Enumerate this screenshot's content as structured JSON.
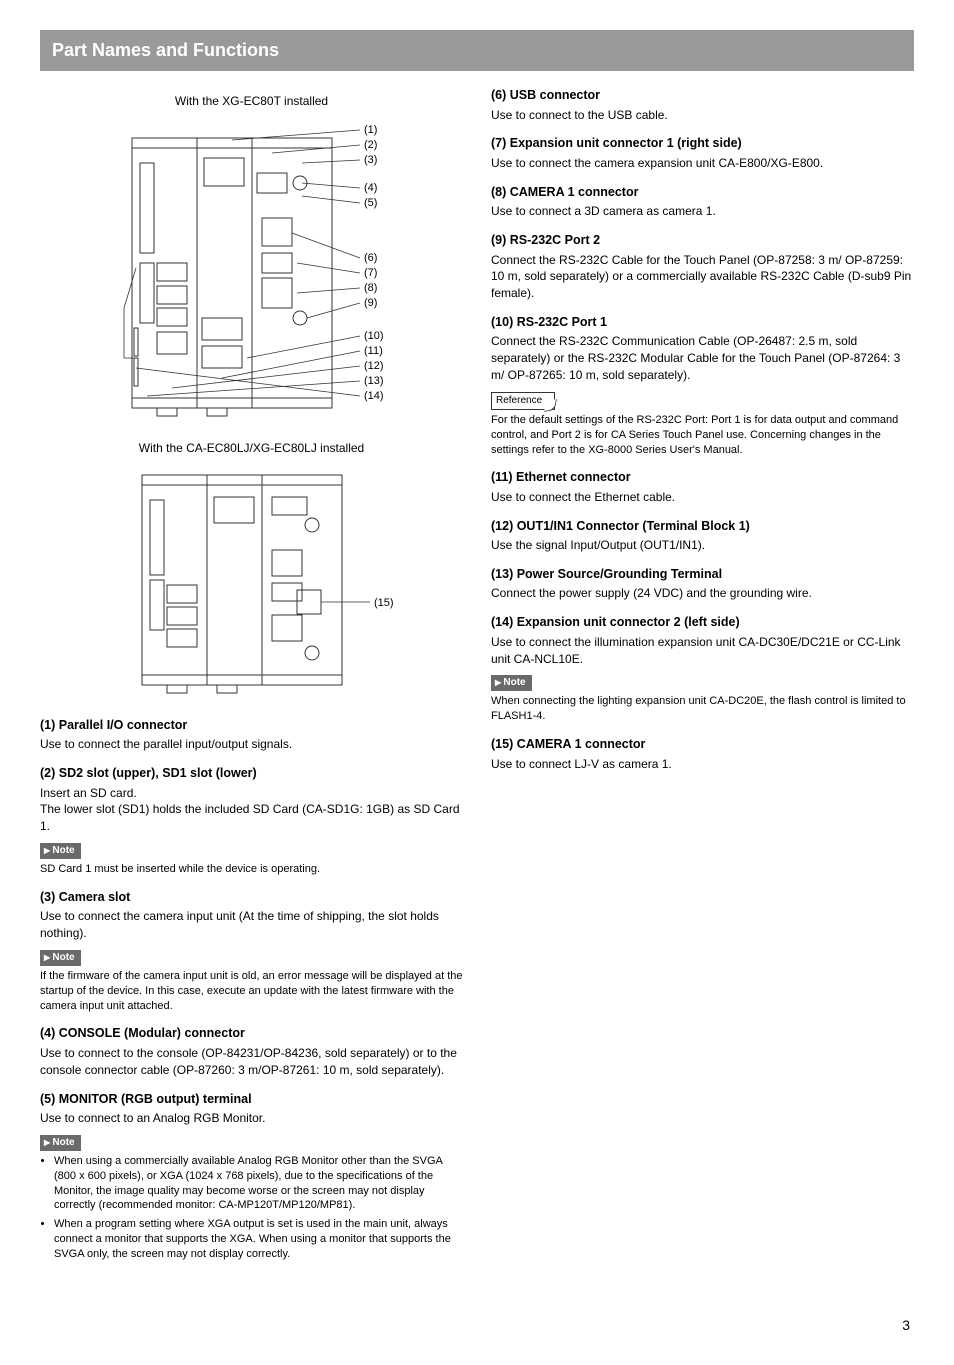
{
  "header": {
    "title": "Part Names and Functions"
  },
  "figures": {
    "fig1": {
      "caption": "With the XG-EC80T installed",
      "labels": [
        "(1)",
        "(2)",
        "(3)",
        "(4)",
        "(5)",
        "(6)",
        "(7)",
        "(8)",
        "(9)",
        "(10)",
        "(11)",
        "(12)",
        "(13)",
        "(14)"
      ]
    },
    "fig2": {
      "caption": "With the CA-EC80LJ/XG-EC80LJ installed",
      "labels": [
        "(15)"
      ]
    }
  },
  "badges": {
    "note": "Note",
    "reference": "Reference"
  },
  "left_items": {
    "i1": {
      "title": "(1) Parallel I/O connector",
      "body": "Use to connect the parallel input/output signals."
    },
    "i2": {
      "title": "(2) SD2 slot (upper), SD1 slot (lower)",
      "body": "Insert an SD card.\nThe lower slot (SD1) holds the included SD Card (CA-SD1G: 1GB) as SD Card 1.",
      "note": "SD Card 1 must be inserted while the device is operating."
    },
    "i3": {
      "title": "(3) Camera slot",
      "body": "Use to connect the camera input unit (At the time of shipping, the slot holds nothing).",
      "note": "If the firmware of the camera input unit is old, an error message will be displayed at the startup of the device. In this case, execute an update with the latest firmware with the camera input unit attached."
    },
    "i4": {
      "title": "(4) CONSOLE (Modular) connector",
      "body": "Use to connect to the console (OP-84231/OP-84236, sold separately) or to the console connector cable (OP-87260: 3 m/OP-87261: 10 m, sold separately)."
    },
    "i5": {
      "title": "(5) MONITOR (RGB output) terminal",
      "body": "Use to connect to an Analog RGB Monitor.",
      "note_list": [
        "When using a commercially available Analog RGB Monitor other than the SVGA (800 x 600 pixels), or XGA (1024 x 768 pixels), due to the specifications of the Monitor, the image quality may become worse or the screen may not display correctly (recommended monitor: CA-MP120T/MP120/MP81).",
        "When a program setting where XGA output is set is used in the main unit, always connect a monitor that supports the XGA. When using a monitor that supports the SVGA only, the screen may not display correctly."
      ]
    }
  },
  "right_items": {
    "i6": {
      "title": "(6) USB connector",
      "body": "Use to connect to the USB cable."
    },
    "i7": {
      "title": "(7) Expansion unit connector 1 (right side)",
      "body": "Use to connect the camera expansion unit CA-E800/XG-E800."
    },
    "i8": {
      "title": "(8) CAMERA 1 connector",
      "body": "Use to connect a 3D camera as camera 1."
    },
    "i9": {
      "title": "(9) RS-232C Port 2",
      "body": "Connect the RS-232C Cable for the Touch Panel (OP-87258: 3 m/ OP-87259: 10 m, sold separately) or a commercially available RS-232C Cable (D-sub9 Pin female)."
    },
    "i10": {
      "title": "(10) RS-232C Port 1",
      "body": "Connect the RS-232C Communication Cable (OP-26487: 2.5 m, sold separately) or the RS-232C Modular Cable for the Touch Panel (OP-87264: 3 m/ OP-87265: 10 m, sold separately).",
      "ref": "For the default settings of the RS-232C Port: Port 1 is for data output and command control, and Port 2 is for CA Series Touch Panel use. Concerning changes in the settings refer to the XG-8000 Series User's Manual."
    },
    "i11": {
      "title": "(11) Ethernet connector",
      "body": "Use to connect the Ethernet cable."
    },
    "i12": {
      "title": "(12) OUT1/IN1 Connector (Terminal Block 1)",
      "body": "Use the signal Input/Output (OUT1/IN1)."
    },
    "i13": {
      "title": "(13) Power Source/Grounding Terminal",
      "body": "Connect the power supply (24 VDC) and the grounding wire."
    },
    "i14": {
      "title": "(14) Expansion unit connector 2 (left side)",
      "body": "Use to connect the illumination expansion unit CA-DC30E/DC21E or CC-Link unit CA-NCL10E.",
      "note": "When connecting the lighting expansion unit CA-DC20E, the flash control is limited to FLASH1-4."
    },
    "i15": {
      "title": "(15) CAMERA 1 connector",
      "body": "Use to connect LJ-V as camera 1."
    }
  },
  "page_number": "3",
  "style": {
    "header_bg": "#9a9a9a",
    "header_fg": "#ffffff",
    "note_bg": "#6a6a6a",
    "stroke": "#333333",
    "body_font_size": 12,
    "title_font_size": 12.5,
    "small_font_size": 11,
    "header_font_size": 18
  }
}
